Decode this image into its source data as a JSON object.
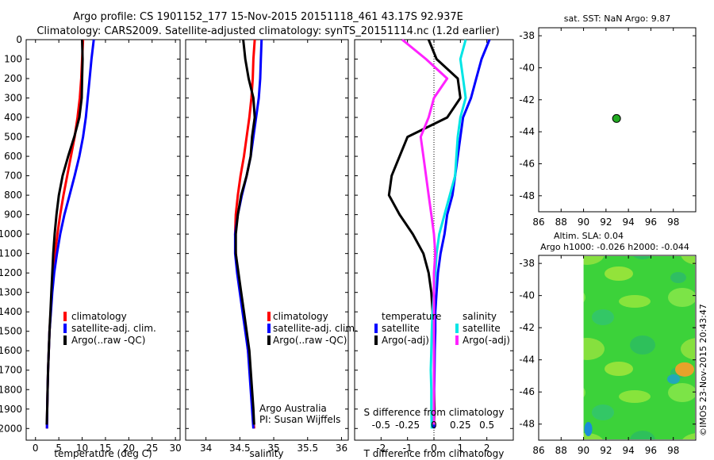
{
  "header": {
    "title_line1": "Argo profile: CS 1901152_177 15-Nov-2015 20151118_461 43.17S 92.937E",
    "title_line2": "Climatology: CARS2009. Satellite-adjusted climatology: synTS_20151114.nc (1.2d earlier)"
  },
  "colors": {
    "climatology": "#ff0000",
    "satellite": "#0000ff",
    "argo": "#000000",
    "sat_salinity": "#00e5e5",
    "argo_salinity": "#ff22ff",
    "point": "#22aa22"
  },
  "depth_ticks": [
    "0",
    "100",
    "200",
    "300",
    "400",
    "500",
    "600",
    "700",
    "800",
    "900",
    "1000",
    "1100",
    "1200",
    "1300",
    "1400",
    "1500",
    "1600",
    "1700",
    "1800",
    "1900",
    "2000"
  ],
  "chart_data": [
    {
      "id": "temperature",
      "type": "line",
      "xlabel": "temperature (deg C)",
      "xlim": [
        -2,
        31
      ],
      "ylim": [
        0,
        2060
      ],
      "x_ticks": [
        "0",
        "5",
        "10",
        "15",
        "20",
        "25",
        "30"
      ],
      "x_tick_values": [
        0,
        5,
        10,
        15,
        20,
        25,
        30
      ],
      "legend": [
        "climatology",
        "satellite-adj. clim.",
        "Argo(..raw -QC)"
      ],
      "series": [
        {
          "name": "climatology",
          "color_key": "climatology",
          "x": [
            10.2,
            10.0,
            9.8,
            9.5,
            9.0,
            8.4,
            7.6,
            6.8,
            6.0,
            5.3,
            4.7,
            4.2,
            3.8,
            3.5,
            3.25,
            3.0,
            2.85,
            2.7,
            2.6,
            2.5,
            2.45
          ],
          "y": [
            0,
            100,
            200,
            300,
            400,
            500,
            600,
            700,
            800,
            900,
            1000,
            1100,
            1200,
            1300,
            1400,
            1500,
            1600,
            1700,
            1800,
            1900,
            2000
          ]
        },
        {
          "name": "satellite-adj. clim.",
          "color_key": "satellite",
          "x": [
            12.5,
            12.0,
            11.6,
            11.2,
            10.8,
            10.2,
            9.4,
            8.4,
            7.3,
            6.2,
            5.3,
            4.6,
            4.0,
            3.6,
            3.3,
            3.0,
            2.85,
            2.7,
            2.6,
            2.5,
            2.45
          ],
          "y": [
            0,
            100,
            200,
            300,
            400,
            500,
            600,
            700,
            800,
            900,
            1000,
            1100,
            1200,
            1300,
            1400,
            1500,
            1600,
            1700,
            1800,
            1900,
            2000
          ]
        },
        {
          "name": "Argo(..raw -QC)",
          "color_key": "argo",
          "x": [
            10.0,
            10.1,
            10.0,
            9.9,
            9.4,
            8.3,
            7.0,
            5.8,
            5.0,
            4.5,
            4.1,
            3.8,
            3.6,
            3.4,
            3.2,
            3.0,
            2.85,
            2.7,
            2.6,
            2.5,
            2.4
          ],
          "y": [
            0,
            100,
            200,
            300,
            400,
            500,
            600,
            700,
            800,
            900,
            1000,
            1100,
            1200,
            1300,
            1400,
            1500,
            1600,
            1700,
            1800,
            1900,
            1980
          ]
        }
      ]
    },
    {
      "id": "salinity",
      "type": "line",
      "xlabel": "salinity",
      "xlim": [
        33.7,
        36.1
      ],
      "ylim": [
        0,
        2060
      ],
      "x_ticks": [
        "34",
        "34.5",
        "35",
        "35.5",
        "36"
      ],
      "x_tick_values": [
        34,
        34.5,
        35,
        35.5,
        36
      ],
      "legend": [
        "climatology",
        "satellite-adj. clim.",
        "Argo(..raw -QC)"
      ],
      "annotation_line1": "Argo Australia",
      "annotation_line2": "PI: Susan Wijffels",
      "series": [
        {
          "name": "climatology",
          "color_key": "climatology",
          "x": [
            34.72,
            34.7,
            34.69,
            34.67,
            34.64,
            34.6,
            34.56,
            34.51,
            34.47,
            34.44,
            34.43,
            34.44,
            34.47,
            34.51,
            34.55,
            34.59,
            34.62,
            34.65,
            34.67,
            34.69,
            34.71
          ],
          "y": [
            0,
            100,
            200,
            300,
            400,
            500,
            600,
            700,
            800,
            900,
            1000,
            1100,
            1200,
            1300,
            1400,
            1500,
            1600,
            1700,
            1800,
            1900,
            2000
          ]
        },
        {
          "name": "satellite-adj. clim.",
          "color_key": "satellite",
          "x": [
            34.82,
            34.81,
            34.8,
            34.78,
            34.74,
            34.7,
            34.66,
            34.6,
            34.53,
            34.47,
            34.43,
            34.43,
            34.46,
            34.5,
            34.54,
            34.58,
            34.62,
            34.64,
            34.66,
            34.68,
            34.7
          ],
          "y": [
            0,
            100,
            200,
            300,
            400,
            500,
            600,
            700,
            800,
            900,
            1000,
            1100,
            1200,
            1300,
            1400,
            1500,
            1600,
            1700,
            1800,
            1900,
            2000
          ]
        },
        {
          "name": "Argo(..raw -QC)",
          "color_key": "argo",
          "x": [
            34.55,
            34.58,
            34.63,
            34.7,
            34.72,
            34.68,
            34.66,
            34.6,
            34.52,
            34.47,
            34.44,
            34.44,
            34.48,
            34.52,
            34.56,
            34.6,
            34.64,
            34.66,
            34.68,
            34.7,
            34.71
          ],
          "y": [
            0,
            100,
            200,
            300,
            400,
            500,
            600,
            700,
            800,
            900,
            1000,
            1100,
            1200,
            1300,
            1400,
            1500,
            1600,
            1700,
            1800,
            1900,
            1980
          ]
        }
      ]
    },
    {
      "id": "difference",
      "type": "line",
      "xlabel": "T difference from climatology",
      "xlabel_top": "S difference from climatology",
      "xlim": [
        -3,
        3
      ],
      "ylim": [
        0,
        2060
      ],
      "x_ticks": [
        "-2",
        "-1",
        "0",
        "1",
        "2"
      ],
      "x_tick_values": [
        -2,
        -1,
        0,
        1,
        2
      ],
      "s_ticks": [
        "-0.5",
        "-0.25",
        "0",
        "0.25",
        "0.5"
      ],
      "s_tick_values": [
        -2,
        -1,
        0,
        1,
        2
      ],
      "legend_temperature_header": "temperature",
      "legend_salinity_header": "salinity",
      "legend": [
        "satellite",
        "Argo(-adj)",
        "satellite",
        "Argo(-adj)"
      ],
      "series": [
        {
          "name": "satellite",
          "color_key": "satellite",
          "x": [
            2.1,
            1.8,
            1.6,
            1.4,
            1.1,
            1.0,
            0.9,
            0.8,
            0.7,
            0.5,
            0.4,
            0.25,
            0.15,
            0.1,
            0.05,
            0.05,
            0.03,
            0.02,
            0.01,
            0.0,
            0.0
          ],
          "y": [
            0,
            100,
            200,
            300,
            400,
            500,
            600,
            700,
            800,
            900,
            1000,
            1100,
            1200,
            1300,
            1400,
            1500,
            1600,
            1700,
            1800,
            1900,
            2000
          ]
        },
        {
          "name": "Argo(-adj)",
          "color_key": "argo",
          "x": [
            -0.2,
            0.1,
            0.9,
            1.0,
            0.5,
            -1.0,
            -1.3,
            -1.6,
            -1.7,
            -1.3,
            -0.8,
            -0.4,
            -0.2,
            -0.1,
            -0.05,
            0.0,
            0.0,
            0.0,
            0.0,
            0.02,
            0.0
          ],
          "y": [
            0,
            100,
            200,
            300,
            400,
            500,
            600,
            700,
            800,
            900,
            1000,
            1100,
            1200,
            1300,
            1400,
            1500,
            1600,
            1700,
            1800,
            1900,
            1980
          ]
        },
        {
          "name": "satellite",
          "color_key": "sat_salinity",
          "x": [
            1.2,
            1.0,
            1.1,
            1.2,
            1.0,
            0.9,
            0.85,
            0.8,
            0.6,
            0.4,
            0.2,
            0.1,
            0.05,
            0.0,
            -0.05,
            -0.08,
            -0.1,
            -0.12,
            -0.1,
            -0.1,
            -0.08
          ],
          "y": [
            0,
            100,
            200,
            300,
            400,
            500,
            600,
            700,
            800,
            900,
            1000,
            1100,
            1200,
            1300,
            1400,
            1500,
            1600,
            1700,
            1800,
            1900,
            2000
          ]
        },
        {
          "name": "Argo(-adj)",
          "color_key": "argo_salinity",
          "x": [
            -1.2,
            -0.3,
            0.5,
            0.0,
            -0.2,
            -0.5,
            -0.4,
            -0.3,
            -0.2,
            -0.1,
            0.0,
            0.05,
            0.0,
            0.0,
            0.0,
            0.0,
            0.0,
            0.0,
            0.0,
            0.0,
            0.0
          ],
          "y": [
            0,
            100,
            200,
            300,
            400,
            500,
            600,
            700,
            800,
            900,
            1000,
            1100,
            1200,
            1300,
            1400,
            1500,
            1600,
            1700,
            1800,
            1900,
            1980
          ]
        }
      ]
    },
    {
      "id": "sst-map",
      "type": "scatter",
      "title": "sat. SST: NaN Argo: 9.87",
      "xlim": [
        86,
        100
      ],
      "ylim": [
        -49,
        -37.5
      ],
      "x_ticks": [
        "86",
        "88",
        "90",
        "92",
        "94",
        "96",
        "98"
      ],
      "x_tick_values": [
        86,
        88,
        90,
        92,
        94,
        96,
        98
      ],
      "y_ticks": [
        "-38",
        "-40",
        "-42",
        "-44",
        "-46",
        "-48"
      ],
      "y_tick_values": [
        -38,
        -40,
        -42,
        -44,
        -46,
        -48
      ],
      "points": [
        {
          "x": 92.94,
          "y": -43.17
        }
      ]
    },
    {
      "id": "sla-map",
      "type": "heatmap",
      "title_line1": "Altim. SLA: 0.04",
      "title_line2": "Argo h1000: -0.026 h2000: -0.044",
      "xlim": [
        86,
        100
      ],
      "ylim": [
        -49,
        -37.5
      ],
      "x_ticks": [
        "86",
        "88",
        "90",
        "92",
        "94",
        "96",
        "98"
      ],
      "x_tick_values": [
        86,
        88,
        90,
        92,
        94,
        96,
        98
      ],
      "y_ticks": [
        "-38",
        "-40",
        "-42",
        "-44",
        "-46",
        "-48"
      ],
      "y_tick_values": [
        -38,
        -40,
        -42,
        -44,
        -46,
        -48
      ],
      "data_xlim": [
        90,
        100
      ]
    }
  ],
  "footer": {
    "credit": "©IMOS 23-Nov-2015 20:43:47"
  }
}
